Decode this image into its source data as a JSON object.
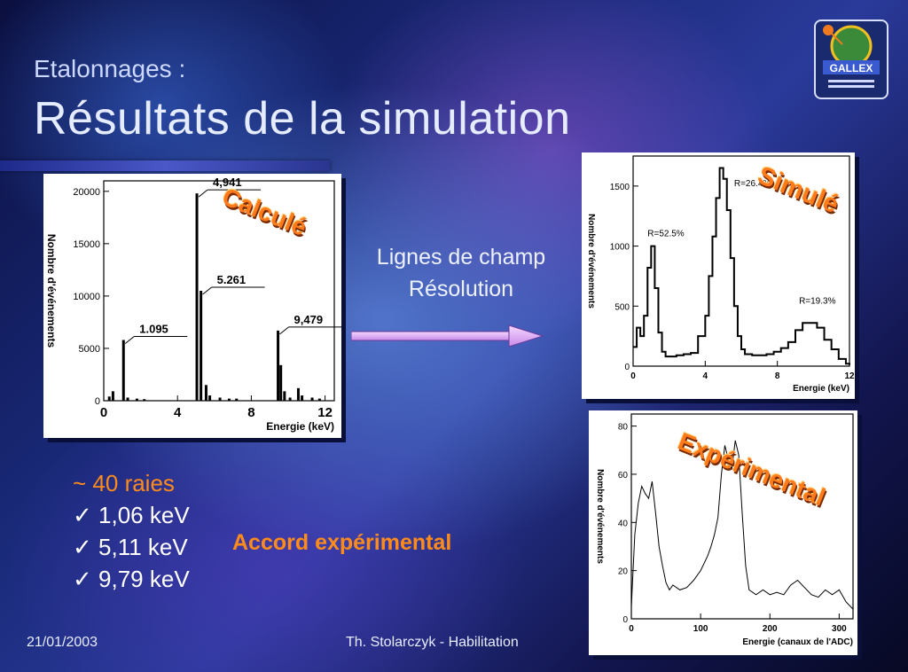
{
  "header": {
    "subtitle": "Etalonnages :",
    "title": "Résultats de la simulation"
  },
  "logo": {
    "text": "GALLEX"
  },
  "middle": {
    "line1": "Lignes de champ",
    "line2": "Résolution"
  },
  "bullets": [
    {
      "mark": "~",
      "text": "40 raies"
    },
    {
      "mark": "✓",
      "text": "1,06 keV"
    },
    {
      "mark": "✓",
      "text": "5,11 keV"
    },
    {
      "mark": "✓",
      "text": "9,79 keV"
    }
  ],
  "accord": "Accord expérimental",
  "footer": {
    "date": "21/01/2003",
    "author": "Th. Stolarczyk - Habilitation"
  },
  "overlays": {
    "calcule": "Calculé",
    "simule": "Simulé",
    "experimental": "Expérimental"
  },
  "chart_data": [
    {
      "type": "bar",
      "xlabel": "Energie (keV)",
      "ylabel": "Nombre d'événements",
      "xlim": [
        0,
        12.5
      ],
      "ylim": [
        0,
        21000
      ],
      "xticks": [
        0,
        4,
        8,
        12
      ],
      "yticks": [
        0,
        5000,
        10000,
        15000,
        20000
      ],
      "x": [
        0.3,
        0.5,
        1.07,
        1.3,
        1.8,
        2.2,
        5.05,
        5.27,
        5.55,
        5.75,
        6.3,
        6.8,
        7.2,
        9.45,
        9.6,
        9.8,
        10.1,
        10.55,
        10.75,
        11.3,
        11.7
      ],
      "values": [
        400,
        900,
        5800,
        300,
        200,
        150,
        19800,
        10500,
        1500,
        500,
        300,
        200,
        200,
        6700,
        3400,
        900,
        300,
        1200,
        500,
        300,
        200
      ],
      "annotations": [
        {
          "text": "4,941",
          "x": 5.05,
          "y": 19800
        },
        {
          "text": "5.261",
          "x": 5.27,
          "y": 10500
        },
        {
          "text": "1.095",
          "x": 1.07,
          "y": 5800
        },
        {
          "text": "9,479",
          "x": 9.45,
          "y": 6700
        }
      ]
    },
    {
      "type": "line",
      "xlabel": "Energie (keV)",
      "ylabel": "Nombre d'événements",
      "xlim": [
        0,
        12
      ],
      "ylim": [
        0,
        1750
      ],
      "xticks": [
        0,
        4,
        8,
        12
      ],
      "yticks": [
        0,
        500,
        1000,
        1500
      ],
      "x": [
        0,
        0.2,
        0.4,
        0.6,
        0.8,
        1.0,
        1.2,
        1.4,
        1.6,
        1.8,
        2.0,
        2.4,
        2.8,
        3.2,
        3.6,
        4.0,
        4.2,
        4.4,
        4.6,
        4.8,
        5.0,
        5.2,
        5.4,
        5.6,
        5.8,
        6.0,
        6.2,
        6.6,
        7.0,
        7.4,
        7.8,
        8.2,
        8.6,
        9.0,
        9.4,
        9.8,
        10.2,
        10.6,
        11.0,
        11.4,
        11.8,
        12
      ],
      "y": [
        160,
        320,
        250,
        420,
        820,
        1000,
        650,
        280,
        120,
        80,
        80,
        90,
        100,
        110,
        250,
        420,
        750,
        1080,
        1400,
        1650,
        1560,
        1300,
        900,
        500,
        250,
        140,
        100,
        90,
        90,
        100,
        120,
        150,
        200,
        300,
        360,
        360,
        320,
        220,
        140,
        60,
        20,
        10
      ],
      "annotations": [
        {
          "text": "R=52.5%",
          "x": 0.8,
          "y": 1080
        },
        {
          "text": "R=26.4%",
          "x": 5.6,
          "y": 1500
        },
        {
          "text": "R=19.3%",
          "x": 9.2,
          "y": 520
        }
      ]
    },
    {
      "type": "line",
      "xlabel": "Energie (canaux de l'ADC)",
      "ylabel": "Nombre d'événements",
      "xlim": [
        0,
        320
      ],
      "ylim": [
        0,
        85
      ],
      "xticks": [
        0,
        100,
        200,
        300
      ],
      "yticks": [
        0,
        20,
        40,
        60,
        80
      ],
      "x": [
        0,
        5,
        10,
        15,
        20,
        25,
        30,
        35,
        40,
        45,
        50,
        55,
        60,
        70,
        80,
        90,
        100,
        110,
        115,
        120,
        125,
        130,
        135,
        140,
        145,
        150,
        155,
        160,
        165,
        170,
        180,
        190,
        200,
        210,
        220,
        230,
        240,
        250,
        260,
        270,
        280,
        290,
        300,
        310,
        320
      ],
      "y": [
        5,
        35,
        48,
        55,
        52,
        50,
        57,
        44,
        30,
        22,
        15,
        12,
        14,
        12,
        13,
        16,
        20,
        26,
        30,
        35,
        42,
        60,
        72,
        66,
        62,
        74,
        68,
        44,
        22,
        12,
        10,
        12,
        10,
        11,
        10,
        14,
        16,
        13,
        10,
        9,
        12,
        10,
        12,
        7,
        4
      ]
    }
  ]
}
